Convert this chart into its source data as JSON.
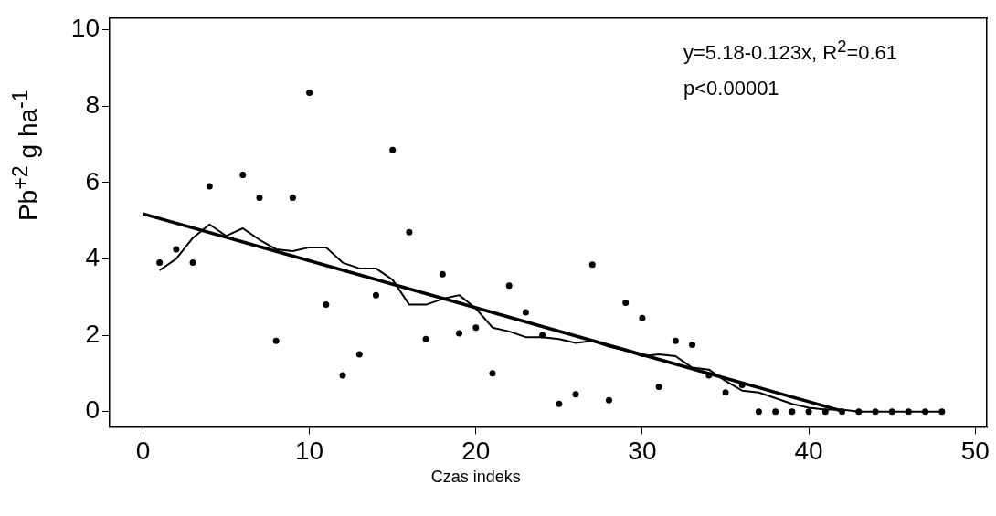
{
  "chart_data": {
    "type": "scatter",
    "xlabel": "Czas indeks",
    "ylabel": "Pb$^{+2}$ g ha$^{-1}$",
    "annotations": [
      "y=5.18-0.123x, R$^{2}$=0.61",
      "p<0.00001"
    ],
    "x": [
      1,
      2,
      3,
      4,
      5,
      6,
      7,
      8,
      9,
      10,
      11,
      12,
      13,
      14,
      15,
      16,
      17,
      18,
      19,
      20,
      21,
      22,
      23,
      24,
      25,
      26,
      27,
      28,
      29,
      30,
      31,
      32,
      33,
      34,
      35,
      36,
      37,
      38,
      39,
      40,
      41,
      42,
      43,
      44,
      45,
      46,
      47,
      48
    ],
    "series": [
      {
        "type": "scatter",
        "color": "#000000",
        "marker": "circle",
        "values": [
          3.9,
          4.25,
          3.9,
          5.9,
          null,
          6.2,
          5.6,
          1.85,
          5.6,
          8.35,
          2.8,
          0.95,
          1.5,
          3.05,
          6.85,
          4.7,
          1.9,
          3.6,
          2.05,
          2.2,
          1.0,
          3.3,
          2.6,
          2.0,
          0.2,
          0.45,
          3.85,
          0.3,
          2.85,
          2.45,
          0.65,
          1.85,
          1.75,
          0.95,
          0.5,
          0.7,
          0,
          0,
          0,
          0,
          0,
          0,
          0,
          0,
          0,
          0,
          0,
          0
        ]
      },
      {
        "type": "line",
        "color": "#000000",
        "marker": "none",
        "values": [
          3.7,
          4.0,
          4.55,
          4.9,
          4.6,
          4.8,
          4.5,
          4.25,
          4.2,
          4.3,
          4.3,
          3.9,
          3.75,
          3.75,
          3.45,
          2.8,
          2.8,
          2.95,
          3.05,
          2.7,
          2.2,
          2.1,
          1.95,
          1.95,
          1.9,
          1.8,
          1.85,
          1.7,
          1.6,
          1.45,
          1.5,
          1.45,
          1.15,
          1.1,
          0.8,
          0.55,
          0.5,
          0.35,
          0.2,
          0.1,
          0.05,
          0.05,
          0,
          0,
          0,
          0,
          0,
          0
        ]
      },
      {
        "type": "line",
        "color": "#000000",
        "marker": "none",
        "x": [
          0,
          42.1
        ],
        "values": [
          5.18,
          0
        ]
      }
    ],
    "xlim": [
      -2,
      50.7
    ],
    "xticks": [
      0,
      10,
      20,
      30,
      40,
      50
    ],
    "ylim": [
      -0.4,
      10.3
    ],
    "yticks": [
      0,
      2,
      4,
      6,
      8,
      10
    ],
    "grid": false,
    "legend": false
  }
}
